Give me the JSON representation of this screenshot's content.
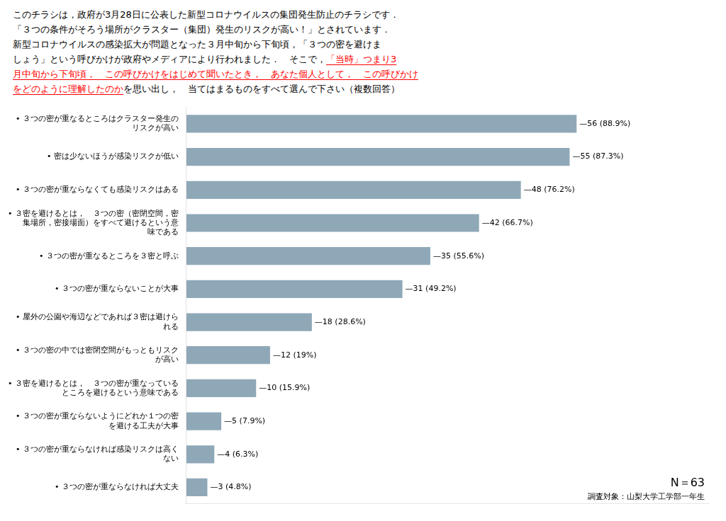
{
  "chart_data": {
    "type": "bar",
    "orientation": "horizontal",
    "subtitle": [
      [
        {
          "text": "このチラシは，政府が3月28日に公表した新型コロナウイルスの集団発生防止のチラシです．",
          "color": "black"
        }
      ],
      [
        {
          "text": "「３つの条件がそろう場所がクラスター（集団）発生のリスクが高い！」とされています．",
          "color": "black"
        }
      ],
      [
        {
          "text": "新型コロナウイルスの感染拡大が問題となった３月中旬から下旬頃，「３つの密を避けま",
          "color": "black"
        }
      ],
      [
        {
          "text": "しょう」という呼びかけが政府やメディアにより行われました．　そこで，",
          "color": "black"
        },
        {
          "text": "「当時」つまり3",
          "color": "red"
        }
      ],
      [
        {
          "text": "月中旬から下旬頃，　この呼びかけをはじめて聞いたとき，　あなた個人として，　この呼びかけ",
          "color": "red"
        }
      ],
      [
        {
          "text": "をどのように理解したのか",
          "color": "red"
        },
        {
          "text": "を思い出し，　当てはまるものをすべて選んで下さい（複数回答）",
          "color": "black"
        }
      ]
    ],
    "categories": [
      "• ３つの密が重なるところはクラスター発生の\nリスクが高い",
      "• 密は少ないほうが感染リスクが低い",
      "• ３つの密が重ならなくても感染リスクはある",
      "• ３密を避けるとは，　３つの密（密閉空間，密\n集場所，密接場面）をすべて避けるという意\n味である",
      "• ３つの密が重なるところを３密と呼ぶ",
      "• ３つの密が重ならないことが大事",
      "• 屋外の公園や海辺などであれば３密は避けら\nれる",
      "• ３つの密の中では密閉空間がもっともリスク\nが高い",
      "• ３密を避けるとは，　３つの密が重なっている\nところを避けるという意味である",
      "• ３つの密が重ならないようにどれか１つの密\nを避ける工夫が大事",
      "• ３つの密が重ならなければ感染リスクは高く\nない",
      "• ３つの密が重ならなければ大丈夫"
    ],
    "values": [
      56,
      55,
      48,
      42,
      35,
      31,
      18,
      12,
      10,
      5,
      4,
      3
    ],
    "value_labels": [
      "—56 (88.9%)",
      "—55 (87.3%)",
      "—48 (76.2%)",
      "—42 (66.7%)",
      "—35 (55.6%)",
      "—31 (49.2%)",
      "—18 (28.6%)",
      "—12 (19%)",
      "—10 (15.9%)",
      "—5 (7.9%)",
      "—4 (6.3%)",
      "—3 (4.8%)"
    ],
    "data_labels": true,
    "color": "#8fa8b8",
    "xlim": [
      0,
      75
    ],
    "xticks": [],
    "tick_labels": "y",
    "grid": false,
    "annotations": [
      "N＝63",
      "調査対象：山梨大学工学部一年生"
    ]
  }
}
